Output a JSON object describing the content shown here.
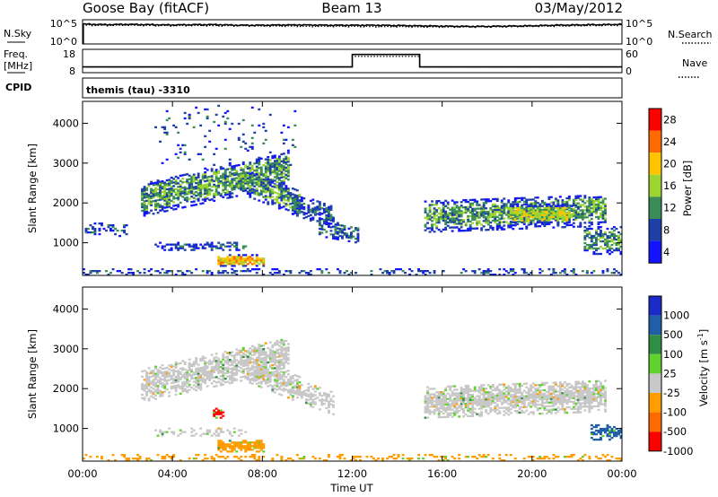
{
  "header": {
    "station": "Goose Bay (fitACF)",
    "beam": "Beam 13",
    "date": "03/May/2012"
  },
  "noise_panel": {
    "left_label": "N.Sky",
    "right_label": "N.Search",
    "ticks": [
      "10^5",
      "10^0"
    ],
    "series_sky": [
      3.1,
      3.0,
      3.05,
      3.0,
      2.95,
      3.0,
      3.0,
      2.9,
      2.9,
      2.95,
      2.95,
      2.9,
      2.9,
      2.9,
      2.85,
      2.8,
      2.75,
      2.7,
      2.7,
      2.75,
      2.8,
      2.9,
      2.95,
      3.0,
      3.05
    ],
    "series_search": [
      2.9,
      2.85,
      2.9,
      2.85,
      2.8,
      2.85,
      2.8,
      2.8,
      2.75,
      2.75,
      2.7,
      2.7,
      2.7,
      2.65,
      2.65,
      2.6,
      2.6,
      2.6,
      2.6,
      2.65,
      2.7,
      2.75,
      2.8,
      2.85,
      2.9
    ]
  },
  "freq_panel": {
    "left_label": "Freq.",
    "left_unit": "[MHz]",
    "right_label": "Nave",
    "left_ticks": [
      "18",
      "8"
    ],
    "right_ticks": [
      "60",
      "0"
    ],
    "freq_mhz_segments": [
      {
        "from": 0,
        "to": 12,
        "value": 10
      },
      {
        "from": 12,
        "to": 15,
        "value": 16.3
      },
      {
        "from": 15,
        "to": 24,
        "value": 10
      }
    ],
    "nave_segments": [
      {
        "from": 0,
        "to": 12,
        "value": 12
      },
      {
        "from": 12,
        "to": 15,
        "value": 44
      },
      {
        "from": 15,
        "to": 24,
        "value": 12
      }
    ]
  },
  "cpid_panel": {
    "label": "CPID",
    "text": "themis (tau)  -3310"
  },
  "chart_data": [
    {
      "type": "heatmap",
      "name": "power",
      "ylabel": "Slant Range [km]",
      "ylim": [
        180,
        4550
      ],
      "yticks": [
        1000,
        2000,
        3000,
        4000
      ],
      "xlim": [
        0,
        24
      ],
      "colorbar": {
        "label": "Power [dB]",
        "ticks": [
          "28",
          "24",
          "20",
          "16",
          "12",
          "8",
          "4"
        ],
        "colors": [
          "#ff0000",
          "#ff6a00",
          "#ffc400",
          "#9cd431",
          "#3a8d57",
          "#1f3fa8",
          "#1313ff"
        ]
      },
      "regions": [
        {
          "t_start": 2.6,
          "t_end": 9.1,
          "r_start": 1650,
          "r_end": 2500,
          "slope_km_per_h": 120,
          "density": 0.75,
          "level": 2
        },
        {
          "t_start": 7.3,
          "t_end": 9.6,
          "r_start": 2150,
          "r_end": 2800,
          "slope_km_per_h": -220,
          "density": 0.7,
          "level": 2
        },
        {
          "t_start": 9.3,
          "t_end": 11.1,
          "r_start": 1700,
          "r_end": 2250,
          "slope_km_per_h": -200,
          "density": 0.6,
          "level": 1
        },
        {
          "t_start": 10.5,
          "t_end": 12.2,
          "r_start": 1150,
          "r_end": 1600,
          "slope_km_per_h": -100,
          "density": 0.55,
          "level": 1
        },
        {
          "t_start": 3.2,
          "t_end": 7.2,
          "r_start": 800,
          "r_end": 1000,
          "slope_km_per_h": 0,
          "density": 0.55,
          "level": 1
        },
        {
          "t_start": 6.0,
          "t_end": 8.0,
          "r_start": 400,
          "r_end": 680,
          "slope_km_per_h": 0,
          "density": 0.9,
          "level": 4
        },
        {
          "t_start": 0.1,
          "t_end": 2.0,
          "r_start": 1150,
          "r_end": 1500,
          "slope_km_per_h": 0,
          "density": 0.4,
          "level": 1
        },
        {
          "t_start": 15.2,
          "t_end": 23.3,
          "r_start": 1250,
          "r_end": 2050,
          "slope_km_per_h": 20,
          "density": 0.7,
          "level": 2
        },
        {
          "t_start": 19.0,
          "t_end": 21.8,
          "r_start": 1450,
          "r_end": 1950,
          "slope_km_per_h": 0,
          "density": 0.8,
          "level": 3
        },
        {
          "t_start": 22.3,
          "t_end": 24.0,
          "r_start": 700,
          "r_end": 1400,
          "slope_km_per_h": 0,
          "density": 0.6,
          "level": 2
        },
        {
          "t_start": 0.0,
          "t_end": 24.0,
          "r_start": 180,
          "r_end": 330,
          "slope_km_per_h": 0,
          "density": 0.3,
          "level": 1
        },
        {
          "t_start": 3.2,
          "t_end": 9.5,
          "r_start": 2800,
          "r_end": 4450,
          "slope_km_per_h": 0,
          "density": 0.05,
          "level": 1
        }
      ]
    },
    {
      "type": "heatmap",
      "name": "velocity",
      "ylabel": "Slant Range [km]",
      "ylim": [
        180,
        4550
      ],
      "yticks": [
        1000,
        2000,
        3000,
        4000
      ],
      "xlim": [
        0,
        24
      ],
      "xlabel": "Time UT",
      "xticks": [
        "00:00",
        "04:00",
        "08:00",
        "12:00",
        "16:00",
        "20:00",
        "00:00"
      ],
      "colorbar": {
        "label": "Velocity [m s",
        "label_exp": "-1",
        "label_end": "]",
        "ticks": [
          "1000",
          "500",
          "100",
          "25",
          "-25",
          "-100",
          "-500",
          "-1000"
        ],
        "colors": [
          "#1b2bc9",
          "#1f5fa8",
          "#2f8d46",
          "#61d12e",
          "#c8c8c8",
          "#ff9c00",
          "#ff6a00",
          "#ff0000"
        ]
      },
      "regions": [
        {
          "t_start": 2.6,
          "t_end": 9.1,
          "r_start": 1650,
          "r_end": 2500,
          "slope_km_per_h": 120,
          "density": 0.7,
          "level": 4
        },
        {
          "t_start": 7.3,
          "t_end": 9.6,
          "r_start": 2150,
          "r_end": 2800,
          "slope_km_per_h": -220,
          "density": 0.65,
          "level": 4
        },
        {
          "t_start": 9.3,
          "t_end": 11.1,
          "r_start": 1700,
          "r_end": 2250,
          "slope_km_per_h": -200,
          "density": 0.5,
          "level": 4
        },
        {
          "t_start": 3.2,
          "t_end": 7.2,
          "r_start": 800,
          "r_end": 1000,
          "slope_km_per_h": 0,
          "density": 0.5,
          "level": 4
        },
        {
          "t_start": 6.0,
          "t_end": 8.0,
          "r_start": 400,
          "r_end": 680,
          "slope_km_per_h": 0,
          "density": 0.9,
          "level": 5
        },
        {
          "t_start": 5.8,
          "t_end": 6.2,
          "r_start": 1250,
          "r_end": 1500,
          "slope_km_per_h": 0,
          "density": 0.9,
          "level": 7
        },
        {
          "t_start": 15.2,
          "t_end": 23.3,
          "r_start": 1250,
          "r_end": 2050,
          "slope_km_per_h": 20,
          "density": 0.8,
          "level": 4
        },
        {
          "t_start": 22.6,
          "t_end": 24.0,
          "r_start": 700,
          "r_end": 1100,
          "slope_km_per_h": 0,
          "density": 0.6,
          "level": 1
        },
        {
          "t_start": 0.0,
          "t_end": 24.0,
          "r_start": 180,
          "r_end": 330,
          "slope_km_per_h": 0,
          "density": 0.3,
          "level": 5
        }
      ]
    }
  ]
}
